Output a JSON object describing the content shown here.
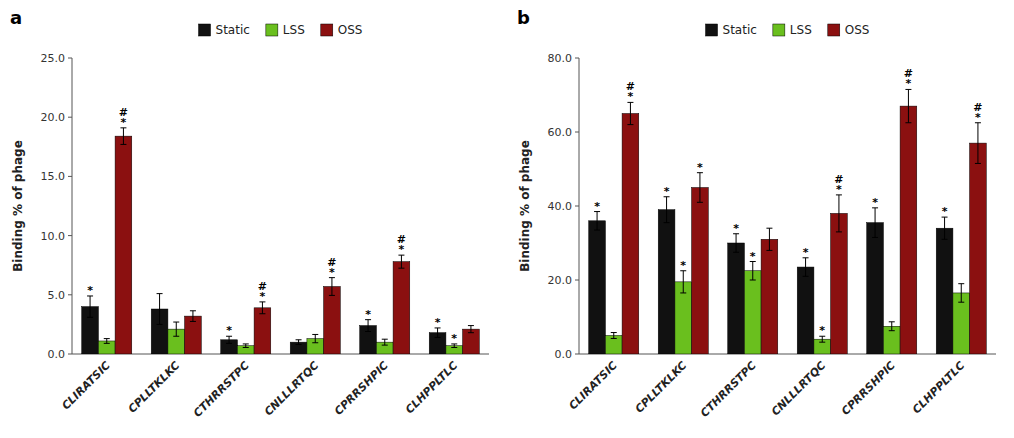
{
  "chart_data": [
    {
      "type": "bar",
      "title": "a",
      "ylabel": "Binding % of phage",
      "categories": [
        "CLIRATSIC",
        "CPLLTKLKC",
        "CTHRRSTPC",
        "CNLLLRTQC",
        "CPRRSHPIC",
        "CLHPPLTLC"
      ],
      "series": [
        {
          "name": "Static",
          "color": "#111111",
          "values": [
            4.0,
            3.8,
            1.2,
            1.0,
            2.4,
            1.8
          ],
          "errors": [
            0.9,
            1.3,
            0.3,
            0.2,
            0.5,
            0.4
          ],
          "annotations": [
            [
              "*"
            ],
            null,
            [
              "*"
            ],
            null,
            [
              "*"
            ],
            [
              "*"
            ]
          ]
        },
        {
          "name": "LSS",
          "color": "#6abf1e",
          "values": [
            1.1,
            2.1,
            0.7,
            1.3,
            1.0,
            0.7
          ],
          "errors": [
            0.2,
            0.6,
            0.15,
            0.35,
            0.25,
            0.15
          ],
          "annotations": [
            null,
            null,
            null,
            null,
            null,
            [
              "*"
            ]
          ]
        },
        {
          "name": "OSS",
          "color": "#8b1010",
          "values": [
            18.4,
            3.2,
            3.9,
            5.7,
            7.8,
            2.1
          ],
          "errors": [
            0.7,
            0.45,
            0.5,
            0.75,
            0.55,
            0.3
          ],
          "annotations": [
            [
              "#",
              "*"
            ],
            null,
            [
              "#",
              "*"
            ],
            [
              "#",
              "*"
            ],
            [
              "#",
              "*"
            ],
            null
          ]
        }
      ],
      "ylim": [
        0,
        25.0
      ],
      "yticks": [
        {
          "value": 0,
          "label": "0.0"
        },
        {
          "value": 5,
          "label": "5.0"
        },
        {
          "value": 10,
          "label": "10.0"
        },
        {
          "value": 15,
          "label": "15.0"
        },
        {
          "value": 20,
          "label": "20.0"
        },
        {
          "value": 25,
          "label": "25.0"
        }
      ],
      "grid": false,
      "legend": "top"
    },
    {
      "type": "bar",
      "title": "b",
      "ylabel": "Binding % of phage",
      "categories": [
        "CLIRATSIC",
        "CPLLTKLKC",
        "CTHRRSTPC",
        "CNLLLRTQC",
        "CPRRSHPIC",
        "CLHPPLTLC"
      ],
      "series": [
        {
          "name": "Static",
          "color": "#111111",
          "values": [
            36.0,
            39.0,
            30.0,
            23.5,
            35.5,
            34.0
          ],
          "errors": [
            2.5,
            3.5,
            2.5,
            2.5,
            4.0,
            3.0
          ],
          "annotations": [
            [
              "*"
            ],
            [
              "*"
            ],
            [
              "*"
            ],
            [
              "*"
            ],
            [
              "*"
            ],
            [
              "*"
            ]
          ]
        },
        {
          "name": "LSS",
          "color": "#6abf1e",
          "values": [
            5.0,
            19.5,
            22.5,
            4.0,
            7.5,
            16.5
          ],
          "errors": [
            0.8,
            3.0,
            2.5,
            0.8,
            1.2,
            2.5
          ],
          "annotations": [
            null,
            [
              "*"
            ],
            [
              "*"
            ],
            [
              "*"
            ],
            null,
            null
          ]
        },
        {
          "name": "OSS",
          "color": "#8b1010",
          "values": [
            65.0,
            45.0,
            31.0,
            38.0,
            67.0,
            57.0
          ],
          "errors": [
            3.0,
            4.0,
            3.0,
            5.0,
            4.5,
            5.5
          ],
          "annotations": [
            [
              "#",
              "*"
            ],
            [
              "*"
            ],
            null,
            [
              "#",
              "*"
            ],
            [
              "#",
              "*"
            ],
            [
              "#",
              "*"
            ]
          ]
        }
      ],
      "ylim": [
        0,
        80.0
      ],
      "yticks": [
        {
          "value": 0,
          "label": "0.0"
        },
        {
          "value": 20,
          "label": "20.0"
        },
        {
          "value": 40,
          "label": "40.0"
        },
        {
          "value": 60,
          "label": "60.0"
        },
        {
          "value": 80,
          "label": "80.0"
        }
      ],
      "grid": false,
      "legend": "top"
    }
  ]
}
